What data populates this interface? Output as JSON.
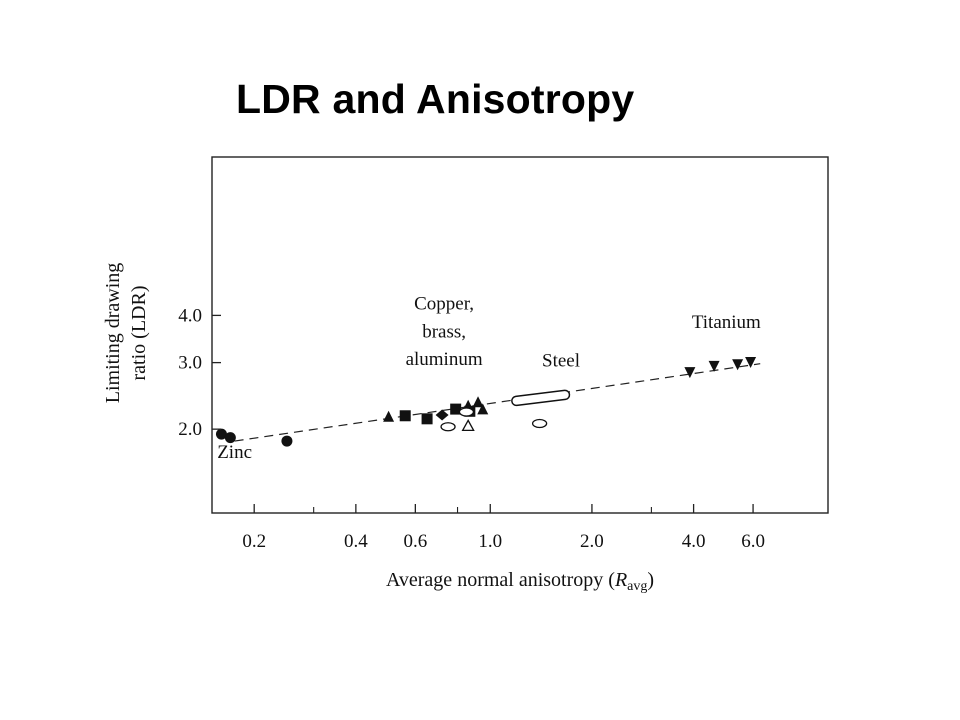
{
  "slide": {
    "title": "LDR and Anisotropy"
  },
  "chart_data": {
    "type": "scatter",
    "xlabel": "Average normal anisotropy (",
    "xlabel_symbol": "R",
    "xlabel_sub": "avg",
    "xlabel_close": ")",
    "ylabel_line1": "Limiting drawing",
    "ylabel_line2": "ratio (LDR)",
    "x_scale": "log",
    "y_scale": "log",
    "xlim": [
      0.15,
      10.0
    ],
    "ylim": [
      1.2,
      10.5
    ],
    "x_ticks": [
      {
        "value": 0.2,
        "label": "0.2"
      },
      {
        "value": 0.4,
        "label": "0.4"
      },
      {
        "value": 0.6,
        "label": "0.6"
      },
      {
        "value": 1.0,
        "label": "1.0"
      },
      {
        "value": 2.0,
        "label": "2.0"
      },
      {
        "value": 4.0,
        "label": "4.0"
      },
      {
        "value": 6.0,
        "label": "6.0"
      }
    ],
    "x_minor_ticks": [
      0.3,
      0.8,
      3.0
    ],
    "y_ticks": [
      {
        "value": 2.0,
        "label": "2.0"
      },
      {
        "value": 3.0,
        "label": "3.0"
      },
      {
        "value": 4.0,
        "label": "4.0"
      }
    ],
    "grid": false,
    "annotations": [
      {
        "text": "Zinc",
        "x": 0.175,
        "y": 1.68
      },
      {
        "text": "Copper,",
        "x": 0.73,
        "y": 4.15
      },
      {
        "text": "brass,",
        "x": 0.73,
        "y": 3.5
      },
      {
        "text": "aluminum",
        "x": 0.73,
        "y": 2.96
      },
      {
        "text": "Steel",
        "x": 1.62,
        "y": 2.93
      },
      {
        "text": "Titanium",
        "x": 5.0,
        "y": 3.7
      }
    ],
    "trend_line": {
      "style": "dashed",
      "points": [
        [
          0.175,
          1.86
        ],
        [
          6.3,
          2.98
        ]
      ]
    },
    "series": [
      {
        "marker": "filled-circle",
        "points": [
          [
            0.16,
            1.94
          ],
          [
            0.17,
            1.9
          ],
          [
            0.25,
            1.86
          ]
        ]
      },
      {
        "marker": "filled-triangle-up",
        "points": [
          [
            0.5,
            2.15
          ],
          [
            0.86,
            2.3
          ],
          [
            0.92,
            2.35
          ],
          [
            0.95,
            2.25
          ]
        ]
      },
      {
        "marker": "filled-square",
        "points": [
          [
            0.56,
            2.17
          ],
          [
            0.65,
            2.13
          ],
          [
            0.79,
            2.26
          ],
          [
            0.87,
            2.23
          ]
        ]
      },
      {
        "marker": "filled-diamond",
        "points": [
          [
            0.72,
            2.18
          ]
        ]
      },
      {
        "marker": "open-ellipse",
        "points": [
          [
            0.75,
            2.03
          ],
          [
            0.85,
            2.22
          ],
          [
            1.4,
            2.07
          ]
        ]
      },
      {
        "marker": "open-triangle-up",
        "points": [
          [
            0.86,
            2.04
          ]
        ]
      },
      {
        "marker": "open-ellipse-long",
        "points": [
          [
            1.41,
            2.42
          ]
        ]
      },
      {
        "marker": "filled-triangle-down",
        "points": [
          [
            3.9,
            2.84
          ],
          [
            4.6,
            2.95
          ],
          [
            5.4,
            2.98
          ],
          [
            5.9,
            3.02
          ]
        ]
      }
    ]
  }
}
